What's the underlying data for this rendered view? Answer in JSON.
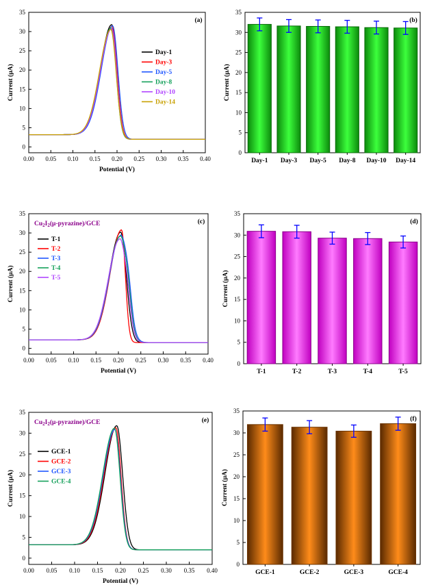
{
  "chart_data": [
    {
      "type": "line",
      "panel_label": "(a)",
      "xlabel": "Potential (V)",
      "ylabel": "Current (μA)",
      "xlim": [
        0,
        0.4
      ],
      "ylim": [
        -1.5,
        35
      ],
      "xticks": [
        "0.00",
        "0.05",
        "0.10",
        "0.15",
        "0.20",
        "0.25",
        "0.30",
        "0.35",
        "0.40"
      ],
      "yticks": [
        "0",
        "5",
        "10",
        "15",
        "20",
        "25",
        "30",
        "35"
      ],
      "legend_position": "right",
      "series": [
        {
          "name": "Day-1",
          "color": "#000000",
          "shape": {
            "base": 3.2,
            "peak_x": 0.188,
            "peak_y": 31.8,
            "lw": 0.036,
            "rw": 0.016,
            "end": 2.0,
            "shoulder": 0
          }
        },
        {
          "name": "Day-3",
          "color": "#ff0000",
          "shape": {
            "base": 3.2,
            "peak_x": 0.189,
            "peak_y": 31.4,
            "lw": 0.036,
            "rw": 0.016,
            "end": 2.0,
            "shoulder": 0
          }
        },
        {
          "name": "Day-5",
          "color": "#1f56ff",
          "shape": {
            "base": 3.2,
            "peak_x": 0.19,
            "peak_y": 31.5,
            "lw": 0.036,
            "rw": 0.017,
            "end": 2.0,
            "shoulder": 0
          }
        },
        {
          "name": "Day-8",
          "color": "#14a05a",
          "shape": {
            "base": 3.2,
            "peak_x": 0.187,
            "peak_y": 31.0,
            "lw": 0.036,
            "rw": 0.016,
            "end": 2.0,
            "shoulder": 0
          }
        },
        {
          "name": "Day-10",
          "color": "#b044ff",
          "shape": {
            "base": 3.2,
            "peak_x": 0.188,
            "peak_y": 30.8,
            "lw": 0.036,
            "rw": 0.016,
            "end": 2.0,
            "shoulder": 0
          }
        },
        {
          "name": "Day-14",
          "color": "#c8a000",
          "shape": {
            "base": 3.2,
            "peak_x": 0.186,
            "peak_y": 30.6,
            "lw": 0.036,
            "rw": 0.017,
            "end": 2.0,
            "shoulder": 0
          }
        }
      ]
    },
    {
      "type": "bar",
      "panel_label": "(b)",
      "ylabel": "Current (μA)",
      "ylim": [
        0,
        35
      ],
      "yticks": [
        "0",
        "5",
        "10",
        "15",
        "20",
        "25",
        "30",
        "35"
      ],
      "categories": [
        "Day-1",
        "Day-3",
        "Day-5",
        "Day-8",
        "Day-10",
        "Day-14"
      ],
      "values": [
        32.0,
        31.6,
        31.5,
        31.4,
        31.2,
        31.1
      ],
      "errors": [
        1.6,
        1.6,
        1.6,
        1.6,
        1.6,
        1.6
      ],
      "bar_color": "#22dd22",
      "bar_edge": "#0a6b0a",
      "error_color": "#0000ff"
    },
    {
      "type": "line",
      "panel_label": "(c)",
      "annotation": "Cu2I2(μ-pyrazine)/GCE",
      "xlabel": "Potential (V)",
      "ylabel": "Current (μA)",
      "xlim": [
        0,
        0.4
      ],
      "ylim": [
        -1.5,
        35
      ],
      "xticks": [
        "0.00",
        "0.05",
        "0.10",
        "0.15",
        "0.20",
        "0.25",
        "0.30",
        "0.35",
        "0.40"
      ],
      "yticks": [
        "0",
        "5",
        "10",
        "15",
        "20",
        "25",
        "30",
        "35"
      ],
      "legend_position": "left",
      "series": [
        {
          "name": "T-1",
          "color": "#000000",
          "shape": {
            "base": 2.2,
            "peak_x": 0.205,
            "peak_y": 30.2,
            "lw": 0.036,
            "rw": 0.018,
            "end": 1.5,
            "shoulder": 0
          }
        },
        {
          "name": "T-2",
          "color": "#ff0000",
          "shape": {
            "base": 2.2,
            "peak_x": 0.207,
            "peak_y": 30.8,
            "lw": 0.036,
            "rw": 0.012,
            "end": 1.5,
            "shoulder": 0
          }
        },
        {
          "name": "T-3",
          "color": "#1f56ff",
          "shape": {
            "base": 2.2,
            "peak_x": 0.205,
            "peak_y": 29.3,
            "lw": 0.036,
            "rw": 0.022,
            "end": 1.5,
            "shoulder": 4
          }
        },
        {
          "name": "T-4",
          "color": "#14a05a",
          "shape": {
            "base": 2.2,
            "peak_x": 0.204,
            "peak_y": 29.1,
            "lw": 0.036,
            "rw": 0.021,
            "end": 1.5,
            "shoulder": 4
          }
        },
        {
          "name": "T-5",
          "color": "#b044ff",
          "shape": {
            "base": 2.2,
            "peak_x": 0.203,
            "peak_y": 28.4,
            "lw": 0.036,
            "rw": 0.021,
            "end": 1.5,
            "shoulder": 3
          }
        }
      ]
    },
    {
      "type": "bar",
      "panel_label": "(d)",
      "ylabel": "Current (μA)",
      "ylim": [
        0,
        35
      ],
      "yticks": [
        "0",
        "5",
        "10",
        "15",
        "20",
        "25",
        "30",
        "35"
      ],
      "categories": [
        "T-1",
        "T-2",
        "T-3",
        "T-4",
        "T-5"
      ],
      "values": [
        30.9,
        30.8,
        29.3,
        29.2,
        28.4
      ],
      "errors": [
        1.5,
        1.5,
        1.4,
        1.4,
        1.4
      ],
      "bar_color": "#ff33ff",
      "bar_edge": "#8a008a",
      "error_color": "#0000ff"
    },
    {
      "type": "line",
      "panel_label": "(e)",
      "annotation": "Cu2I2(μ-pyrazine)/GCE",
      "xlabel": "Potential (V)",
      "ylabel": "Current (μA)",
      "xlim": [
        0,
        0.4
      ],
      "ylim": [
        -1.5,
        35
      ],
      "xticks": [
        "0.00",
        "0.05",
        "0.10",
        "0.15",
        "0.20",
        "0.25",
        "0.30",
        "0.35",
        "0.40"
      ],
      "yticks": [
        "0",
        "5",
        "10",
        "15",
        "20",
        "25",
        "30",
        "35"
      ],
      "legend_position": "left",
      "series": [
        {
          "name": "GCE-1",
          "color": "#000000",
          "shape": {
            "base": 3.2,
            "peak_x": 0.192,
            "peak_y": 31.8,
            "lw": 0.036,
            "rw": 0.018,
            "end": 2.0,
            "shoulder": 0
          }
        },
        {
          "name": "GCE-2",
          "color": "#ff0000",
          "shape": {
            "base": 3.2,
            "peak_x": 0.19,
            "peak_y": 31.3,
            "lw": 0.036,
            "rw": 0.016,
            "end": 2.0,
            "shoulder": 0
          }
        },
        {
          "name": "GCE-3",
          "color": "#1f56ff",
          "shape": {
            "base": 3.2,
            "peak_x": 0.188,
            "peak_y": 30.9,
            "lw": 0.036,
            "rw": 0.017,
            "end": 2.0,
            "shoulder": 0
          }
        },
        {
          "name": "GCE-4",
          "color": "#14a05a",
          "shape": {
            "base": 3.2,
            "peak_x": 0.187,
            "peak_y": 31.2,
            "lw": 0.036,
            "rw": 0.017,
            "end": 2.0,
            "shoulder": 0
          }
        }
      ]
    },
    {
      "type": "bar",
      "panel_label": "(f)",
      "ylabel": "Current (μA)",
      "ylim": [
        0,
        35
      ],
      "yticks": [
        "0",
        "5",
        "10",
        "15",
        "20",
        "25",
        "30",
        "35"
      ],
      "categories": [
        "GCE-1",
        "GCE-2",
        "GCE-3",
        "GCE-4"
      ],
      "values": [
        31.9,
        31.3,
        30.4,
        32.1
      ],
      "errors": [
        1.5,
        1.5,
        1.4,
        1.5
      ],
      "bar_color": "#ff8c1a",
      "bar_edge": "#6b3300",
      "error_color": "#0000ff"
    }
  ]
}
